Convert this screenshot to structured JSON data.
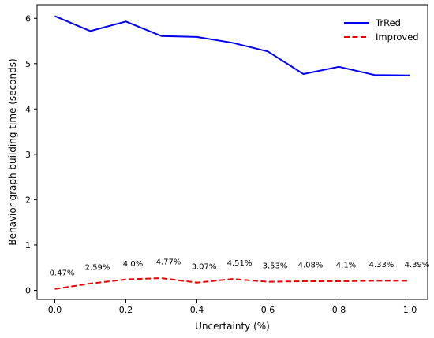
{
  "chart_data": {
    "type": "line",
    "title": "",
    "xlabel": "Uncertainty (%)",
    "ylabel": "Behavior graph building time (seconds)",
    "xlim": [
      -0.05,
      1.05
    ],
    "ylim": [
      -0.2,
      6.3
    ],
    "xticks": [
      0.0,
      0.2,
      0.4,
      0.6,
      0.8,
      1.0
    ],
    "xtick_labels": [
      "0.0",
      "0.2",
      "0.4",
      "0.6",
      "0.8",
      "1.0"
    ],
    "yticks": [
      0,
      1,
      2,
      3,
      4,
      5,
      6
    ],
    "ytick_labels": [
      "0",
      "1",
      "2",
      "3",
      "4",
      "5",
      "6"
    ],
    "grid": false,
    "legend_position": "top-right",
    "x": [
      0.0,
      0.1,
      0.2,
      0.3,
      0.4,
      0.5,
      0.6,
      0.7,
      0.8,
      0.9,
      1.0
    ],
    "series": [
      {
        "name": "TrRed",
        "color": "#0000ee",
        "style": "solid",
        "values": [
          6.05,
          5.72,
          5.93,
          5.61,
          5.59,
          5.46,
          5.27,
          4.77,
          4.93,
          4.75,
          4.74
        ]
      },
      {
        "name": "Improved",
        "color": "#ee0000",
        "style": "dashed",
        "values": [
          0.03,
          0.15,
          0.24,
          0.27,
          0.17,
          0.25,
          0.19,
          0.2,
          0.2,
          0.21,
          0.21
        ]
      }
    ],
    "annotations": [
      {
        "x": 0.0,
        "y": 0.33,
        "text": "0.47%"
      },
      {
        "x": 0.1,
        "y": 0.45,
        "text": "2.59%"
      },
      {
        "x": 0.2,
        "y": 0.53,
        "text": "4.0%"
      },
      {
        "x": 0.3,
        "y": 0.57,
        "text": "4.77%"
      },
      {
        "x": 0.4,
        "y": 0.47,
        "text": "3.07%"
      },
      {
        "x": 0.5,
        "y": 0.55,
        "text": "4.51%"
      },
      {
        "x": 0.6,
        "y": 0.49,
        "text": "3.53%"
      },
      {
        "x": 0.7,
        "y": 0.5,
        "text": "4.08%"
      },
      {
        "x": 0.8,
        "y": 0.5,
        "text": "4.1%"
      },
      {
        "x": 0.9,
        "y": 0.51,
        "text": "4.33%"
      },
      {
        "x": 1.0,
        "y": 0.51,
        "text": "4.39%"
      }
    ]
  }
}
